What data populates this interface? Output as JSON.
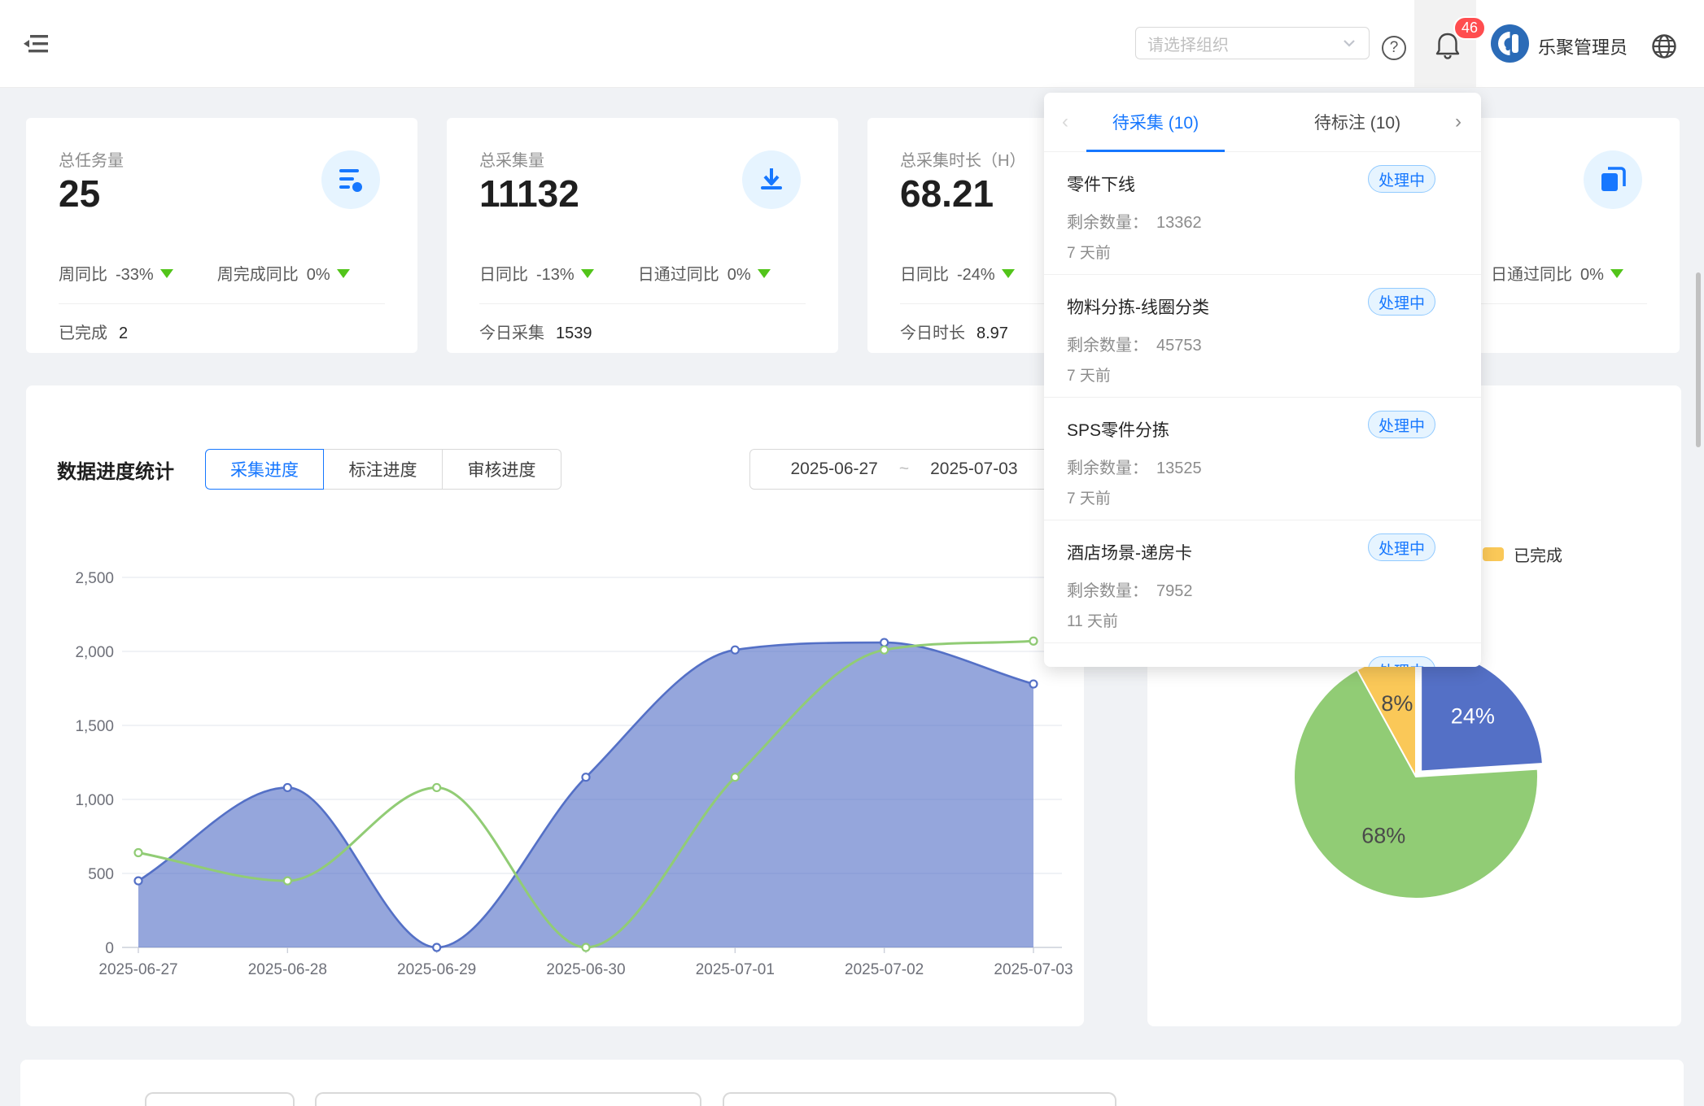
{
  "header": {
    "org_select": {
      "placeholder": "请选择组织"
    },
    "notifications": {
      "count": "46"
    },
    "user_name": "乐聚管理员"
  },
  "stat_cards": [
    {
      "title": "总任务量",
      "value": "25",
      "icon": "tasks-list-icon",
      "stats": [
        {
          "label": "周同比",
          "value": "-33%",
          "trend": "down"
        },
        {
          "label": "周完成同比",
          "value": "0%",
          "trend": "down"
        }
      ],
      "footer": {
        "label": "已完成",
        "value": "2"
      }
    },
    {
      "title": "总采集量",
      "value": "11132",
      "icon": "collect-download-icon",
      "stats": [
        {
          "label": "日同比",
          "value": "-13%",
          "trend": "down"
        },
        {
          "label": "日通过同比",
          "value": "0%",
          "trend": "down"
        }
      ],
      "footer": {
        "label": "今日采集",
        "value": "1539"
      }
    },
    {
      "title": "总采集时长（H）",
      "value": "68.21",
      "icon": "duration-icon",
      "stats": [
        {
          "label": "日同比",
          "value": "-24%",
          "trend": "down"
        }
      ],
      "footer": {
        "label": "今日时长",
        "value": "8.97"
      }
    },
    {
      "icon": "copy-stack-icon",
      "stats": [
        {
          "label": "日通过同比",
          "value": "0%",
          "trend": "down"
        }
      ]
    }
  ],
  "todo_panel": {
    "tabs": [
      {
        "label": "待采集 (10)",
        "active": true
      },
      {
        "label": "待标注 (10)",
        "active": false
      }
    ],
    "items": [
      {
        "title": "零件下线",
        "status": "处理中",
        "remain_label": "剩余数量：",
        "remain": "13362",
        "time": "7 天前"
      },
      {
        "title": "物料分拣-线圈分类",
        "status": "处理中",
        "remain_label": "剩余数量：",
        "remain": "45753",
        "time": "7 天前"
      },
      {
        "title": "SPS零件分拣",
        "status": "处理中",
        "remain_label": "剩余数量：",
        "remain": "13525",
        "time": "7 天前"
      },
      {
        "title": "酒店场景-递房卡",
        "status": "处理中",
        "remain_label": "剩余数量：",
        "remain": "7952",
        "time": "11 天前"
      },
      {
        "title": "",
        "status": "处理中",
        "remain_label": "",
        "remain": "",
        "time": ""
      }
    ]
  },
  "progress_section": {
    "title": "数据进度统计",
    "tabs": [
      "采集进度",
      "标注进度",
      "审核进度"
    ],
    "active_tab": "采集进度",
    "date_range": {
      "start": "2025-06-27",
      "separator": "~",
      "end": "2025-07-03"
    }
  },
  "chart_data": [
    {
      "type": "area",
      "title": "数据进度统计",
      "categories": [
        "2025-06-27",
        "2025-06-28",
        "2025-06-29",
        "2025-06-30",
        "2025-07-01",
        "2025-07-02",
        "2025-07-03"
      ],
      "series": [
        {
          "name": "",
          "type": "area",
          "color": "#5470c6",
          "values": [
            450,
            1080,
            0,
            1150,
            2010,
            2060,
            1780
          ]
        },
        {
          "name": "",
          "type": "line",
          "color": "#91cc75",
          "values": [
            640,
            450,
            1080,
            0,
            1150,
            2010,
            2070
          ]
        }
      ],
      "ylim": [
        0,
        2500
      ],
      "yticks": [
        0,
        500,
        1000,
        1500,
        2000,
        2500
      ],
      "ytick_labels": [
        "0",
        "500",
        "1,000",
        "1,500",
        "2,000",
        "2,500"
      ],
      "grid": true,
      "legend_visible": false
    },
    {
      "type": "pie",
      "slices": [
        {
          "value": 24,
          "label": "24%",
          "color": "#5470c6",
          "selected": true,
          "name": ""
        },
        {
          "value": 68,
          "label": "68%",
          "color": "#91cc75",
          "selected": false,
          "name": ""
        },
        {
          "value": 8,
          "label": "8%",
          "color": "#fac858",
          "selected": false,
          "name": "已完成"
        }
      ],
      "legend": [
        {
          "label": "已完成",
          "color": "#fac858"
        }
      ],
      "legend_position": "top-right"
    }
  ],
  "colors": {
    "accent": "#1677ff",
    "trend_down_green": "#52c41a",
    "notification_red": "#ff4d4f",
    "badge_bg": "#e6f4ff",
    "badge_border": "#91caff",
    "chart_blue": "#5470c6",
    "chart_green": "#91cc75",
    "chart_yellow": "#fac858",
    "page_bg": "#f0f2f5"
  }
}
